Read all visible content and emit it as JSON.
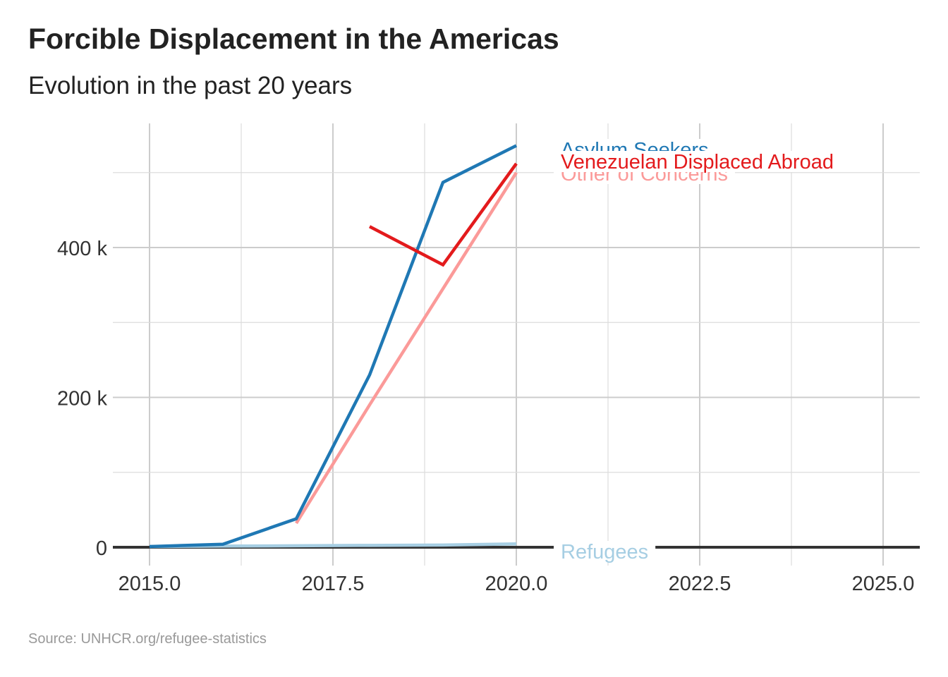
{
  "title": "Forcible Displacement in the Americas",
  "subtitle": "Evolution in the past 20 years",
  "caption": "Source: UNHCR.org/refugee-statistics",
  "chart_data": {
    "type": "line",
    "title": "Forcible Displacement in the Americas",
    "subtitle": "Evolution in the past 20 years",
    "xlabel": "",
    "ylabel": "",
    "xlim": [
      2015,
      2025.5
    ],
    "ylim": [
      0,
      560000
    ],
    "x_ticks": [
      2015,
      2017.5,
      2020,
      2022.5,
      2025
    ],
    "x_tick_labels": [
      "2015.0",
      "2017.5",
      "2020.0",
      "2022.5",
      "2025.0"
    ],
    "y_ticks": [
      0,
      200000,
      400000
    ],
    "y_tick_labels": [
      "0",
      "200 k",
      "400 k"
    ],
    "grid": true,
    "legend": "direct labels at line ends",
    "series": [
      {
        "name": "Refugees",
        "color": "#a6cee3",
        "x": [
          2015,
          2016,
          2017,
          2018,
          2019,
          2020
        ],
        "y": [
          1000,
          1500,
          2000,
          2500,
          3000,
          4500
        ]
      },
      {
        "name": "Other of Concerns",
        "color": "#fb9a99",
        "x": [
          2017,
          2018,
          2019,
          2020
        ],
        "y": [
          32000,
          190000,
          345000,
          500000
        ]
      },
      {
        "name": "Asylum Seekers",
        "color": "#1f78b4",
        "x": [
          2015,
          2016,
          2017,
          2018,
          2019,
          2020
        ],
        "y": [
          1000,
          4000,
          38000,
          230000,
          487000,
          536000
        ]
      },
      {
        "name": "Venezuelan Displaced Abroad",
        "color": "#e31a1c",
        "x": [
          2018,
          2019,
          2020
        ],
        "y": [
          428000,
          377000,
          512000
        ]
      }
    ]
  }
}
